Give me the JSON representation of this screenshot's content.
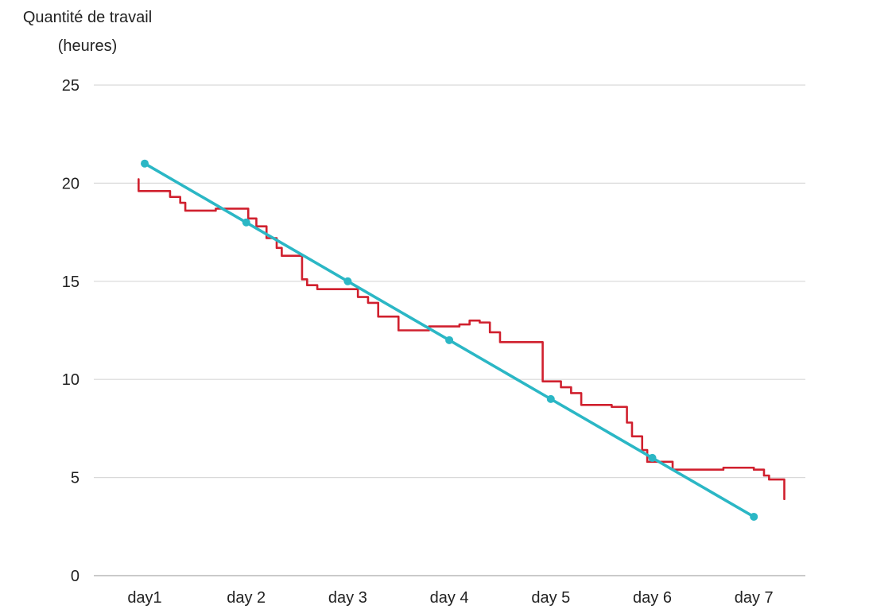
{
  "chart_data": {
    "type": "line",
    "title": "",
    "ylabel": [
      "Quantité de travail",
      "(heures)"
    ],
    "xlabel": "",
    "categories": [
      "day1",
      "day 2",
      "day 3",
      "day 4",
      "day 5",
      "day 6",
      "day 7"
    ],
    "ylim": [
      0,
      25
    ],
    "yticks": [
      0,
      5,
      10,
      15,
      20,
      25
    ],
    "grid": true,
    "legend": "none",
    "series": [
      {
        "color": "#2bb7c5",
        "markers": true,
        "x": [
          0,
          1,
          2,
          3,
          4,
          5,
          6
        ],
        "y": [
          21,
          18,
          15,
          12,
          9,
          6,
          3
        ]
      },
      {
        "color": "#d0202e",
        "markers": false,
        "step": true,
        "x": [
          -0.06,
          -0.06,
          0.2,
          0.25,
          0.35,
          0.4,
          0.65,
          0.7,
          1.0,
          1.02,
          1.1,
          1.2,
          1.3,
          1.35,
          1.5,
          1.55,
          1.6,
          1.7,
          2.0,
          2.1,
          2.2,
          2.3,
          2.5,
          2.6,
          2.7,
          2.8,
          3.0,
          3.1,
          3.2,
          3.3,
          3.4,
          3.5,
          3.7,
          3.92,
          3.92,
          4.1,
          4.2,
          4.3,
          4.55,
          4.6,
          4.75,
          4.8,
          4.9,
          4.95,
          5.2,
          5.3,
          5.6,
          5.7,
          5.8,
          6.0,
          6.1,
          6.15,
          6.3
        ],
        "y": [
          20.2,
          19.6,
          19.6,
          19.3,
          19.0,
          18.6,
          18.6,
          18.7,
          18.7,
          18.2,
          17.8,
          17.2,
          16.7,
          16.3,
          16.3,
          15.1,
          14.8,
          14.6,
          14.6,
          14.2,
          13.9,
          13.2,
          12.5,
          12.5,
          12.5,
          12.7,
          12.7,
          12.8,
          13.0,
          12.9,
          12.4,
          11.9,
          11.9,
          11.9,
          9.9,
          9.6,
          9.3,
          8.7,
          8.7,
          8.6,
          7.8,
          7.1,
          6.4,
          5.8,
          5.4,
          5.4,
          5.4,
          5.5,
          5.5,
          5.4,
          5.1,
          4.9,
          3.9
        ]
      }
    ]
  }
}
